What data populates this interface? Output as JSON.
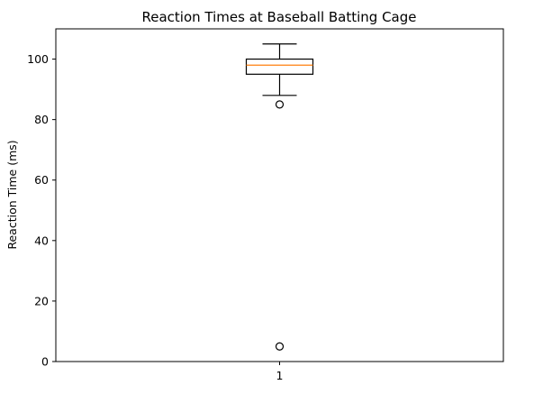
{
  "chart_data": {
    "type": "box",
    "title": "Reaction Times at Baseball Batting Cage",
    "xlabel": "",
    "ylabel": "Reaction Time (ms)",
    "categories": [
      "1"
    ],
    "ylim": [
      0,
      110
    ],
    "yticks": [
      0,
      20,
      40,
      60,
      80,
      100
    ],
    "grid": false,
    "boxes": [
      {
        "category": "1",
        "whisker_low": 88,
        "q1": 95,
        "median": 98,
        "q3": 100,
        "whisker_high": 105,
        "outliers": [
          85,
          5
        ]
      }
    ],
    "colors": {
      "box": "#000000",
      "median": "#ff7f0e",
      "outlier": "#000000"
    }
  }
}
